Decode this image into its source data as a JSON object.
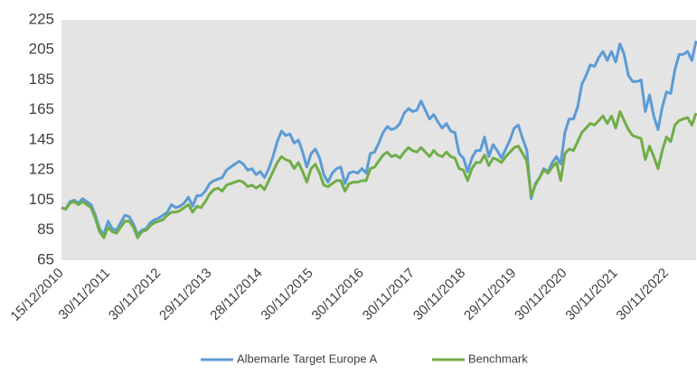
{
  "chart_data": {
    "type": "line",
    "categories": [
      "15/12/2010",
      null,
      null,
      null,
      null,
      null,
      null,
      null,
      null,
      null,
      null,
      "30/11/2011",
      null,
      null,
      null,
      null,
      null,
      null,
      null,
      null,
      null,
      null,
      null,
      "30/11/2012",
      null,
      null,
      null,
      null,
      null,
      null,
      null,
      null,
      null,
      null,
      null,
      "29/11/2013",
      null,
      null,
      null,
      null,
      null,
      null,
      null,
      null,
      null,
      null,
      null,
      "28/11/2014",
      null,
      null,
      null,
      null,
      null,
      null,
      null,
      null,
      null,
      null,
      null,
      "30/11/2015",
      null,
      null,
      null,
      null,
      null,
      null,
      null,
      null,
      null,
      null,
      null,
      "30/11/2016",
      null,
      null,
      null,
      null,
      null,
      null,
      null,
      null,
      null,
      null,
      null,
      "30/11/2017",
      null,
      null,
      null,
      null,
      null,
      null,
      null,
      null,
      null,
      null,
      null,
      "30/11/2018",
      null,
      null,
      null,
      null,
      null,
      null,
      null,
      null,
      null,
      null,
      null,
      "29/11/2019",
      null,
      null,
      null,
      null,
      null,
      null,
      null,
      null,
      null,
      null,
      null,
      "30/11/2020",
      null,
      null,
      null,
      null,
      null,
      null,
      null,
      null,
      null,
      null,
      null,
      "30/11/2021",
      null,
      null,
      null,
      null,
      null,
      null,
      null,
      null,
      null,
      null,
      null,
      "30/11/2022",
      null,
      null,
      null,
      null,
      null,
      null,
      null
    ],
    "series": [
      {
        "name": "Albemarle Target Europe A",
        "color": "#5b9bd5",
        "values": [
          100,
          99,
          104,
          105,
          103,
          106,
          104,
          102,
          95,
          86,
          82,
          91,
          86,
          85,
          90,
          95,
          94,
          89,
          82,
          85,
          86,
          90,
          92,
          93,
          95,
          97,
          102,
          100,
          101,
          103,
          107,
          101,
          108,
          108,
          111,
          116,
          118,
          119,
          120,
          125,
          127,
          129,
          131,
          129,
          125,
          126,
          122,
          124,
          120,
          126,
          134,
          144,
          151,
          148,
          149,
          143,
          145,
          137,
          127,
          136,
          139,
          133,
          122,
          117,
          123,
          126,
          127,
          116,
          123,
          124,
          123,
          126,
          123,
          136,
          137,
          143,
          150,
          154,
          152,
          153,
          156,
          163,
          166,
          164,
          165,
          171,
          165,
          159,
          162,
          157,
          153,
          156,
          151,
          150,
          136,
          133,
          124,
          133,
          138,
          138,
          147,
          134,
          142,
          138,
          133,
          139,
          145,
          153,
          155,
          146,
          138,
          106,
          116,
          120,
          126,
          124,
          130,
          134,
          129,
          150,
          159,
          159,
          167,
          182,
          188,
          195,
          194,
          200,
          204,
          198,
          204,
          197,
          209,
          202,
          188,
          184,
          184,
          185,
          164,
          175,
          161,
          152,
          167,
          177,
          176,
          192,
          202,
          202,
          204,
          198,
          211
        ]
      },
      {
        "name": "Benchmark",
        "color": "#70ad47",
        "values": [
          100,
          99,
          103,
          104,
          102,
          104,
          102,
          100,
          93,
          84,
          80,
          87,
          84,
          83,
          87,
          91,
          91,
          87,
          80,
          84,
          85,
          88,
          90,
          91,
          92,
          95,
          97,
          97,
          98,
          100,
          102,
          97,
          101,
          100,
          104,
          109,
          112,
          113,
          111,
          115,
          116,
          117,
          118,
          117,
          114,
          115,
          113,
          115,
          112,
          118,
          124,
          130,
          134,
          132,
          131,
          126,
          130,
          124,
          117,
          126,
          129,
          123,
          115,
          114,
          116,
          118,
          118,
          111,
          116,
          117,
          117,
          118,
          118,
          126,
          127,
          131,
          135,
          137,
          134,
          135,
          133,
          137,
          140,
          138,
          137,
          140,
          137,
          134,
          138,
          135,
          134,
          137,
          134,
          133,
          126,
          125,
          118,
          126,
          130,
          130,
          135,
          128,
          133,
          132,
          130,
          134,
          137,
          140,
          141,
          136,
          131,
          108,
          115,
          120,
          125,
          123,
          127,
          130,
          118,
          136,
          139,
          138,
          144,
          150,
          153,
          156,
          155,
          158,
          161,
          156,
          161,
          153,
          164,
          158,
          152,
          148,
          147,
          146,
          132,
          141,
          134,
          126,
          138,
          147,
          144,
          155,
          158,
          159,
          160,
          155,
          163
        ]
      }
    ],
    "ylim": [
      65,
      225
    ],
    "yticks": [
      65,
      85,
      105,
      125,
      145,
      165,
      185,
      205,
      225
    ]
  }
}
